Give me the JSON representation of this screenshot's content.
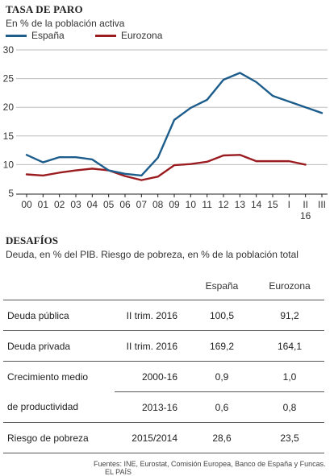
{
  "chart_data": {
    "type": "line",
    "title": "TASA DE PARO",
    "subtitle": "En % de la población activa",
    "x_labels": [
      "00",
      "01",
      "02",
      "03",
      "04",
      "05",
      "06",
      "07",
      "08",
      "09",
      "10",
      "11",
      "12",
      "13",
      "14",
      "15",
      "I",
      "II",
      "III"
    ],
    "x_sublabel": "16",
    "ylim": [
      5,
      30
    ],
    "yticks": [
      5,
      10,
      15,
      20,
      25,
      30
    ],
    "series": [
      {
        "name": "España",
        "color": "#1d5d8c",
        "values": [
          11.7,
          10.4,
          11.3,
          11.3,
          10.9,
          9.0,
          8.4,
          8.1,
          11.2,
          17.8,
          19.9,
          21.3,
          24.8,
          26.0,
          24.4,
          22.0,
          21.0,
          20.0,
          19.0
        ]
      },
      {
        "name": "Eurozona",
        "color": "#9b1c20",
        "values": [
          8.3,
          8.1,
          8.6,
          9.0,
          9.3,
          9.0,
          8.0,
          7.3,
          7.9,
          9.9,
          10.1,
          10.5,
          11.6,
          11.7,
          10.6,
          10.6,
          10.6,
          10.0,
          null
        ]
      }
    ],
    "grid": true
  },
  "table": {
    "title": "DESAFÍOS",
    "subtitle": "Deuda, en % del PIB. Riesgo de pobreza, en % de la población total",
    "headers": [
      "",
      "",
      "España",
      "Eurozona"
    ],
    "rows": [
      [
        "Deuda pública",
        "II trim. 2016",
        "100,5",
        "91,2"
      ],
      [
        "Deuda privada",
        "II trim. 2016",
        "169,2",
        "164,1"
      ],
      [
        "Crecimiento medio",
        "2000-16",
        "0,9",
        "1,0"
      ],
      [
        "de productividad",
        "2013-16",
        "0,6",
        "0,8"
      ],
      [
        "Riesgo de pobreza",
        "2015/2014",
        "28,6",
        "23,5"
      ]
    ]
  },
  "footer": {
    "sources": "Fuentes: INE, Eurostat, Comisión Europea, Banco de España y Funcas.",
    "brand": "EL PAÍS"
  }
}
